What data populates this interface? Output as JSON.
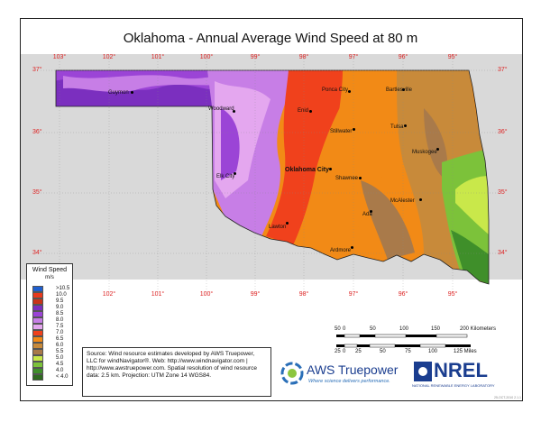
{
  "title": "Oklahoma - Annual Average Wind Speed at 80 m",
  "longitudes": [
    "103°",
    "102°",
    "101°",
    "100°",
    "99°",
    "98°",
    "97°",
    "96°",
    "95°"
  ],
  "latitudes": [
    "37°",
    "36°",
    "35°",
    "34°"
  ],
  "cities": [
    {
      "name": "Guymon",
      "big": false
    },
    {
      "name": "Ponca City",
      "big": false
    },
    {
      "name": "Bartlesville",
      "big": false
    },
    {
      "name": "Enid",
      "big": false
    },
    {
      "name": "Woodward",
      "big": false
    },
    {
      "name": "Stillwater",
      "big": false
    },
    {
      "name": "Tulsa",
      "big": false
    },
    {
      "name": "Muskogee",
      "big": false
    },
    {
      "name": "Oklahoma City",
      "big": true
    },
    {
      "name": "Shawnee",
      "big": false
    },
    {
      "name": "Elk City",
      "big": false
    },
    {
      "name": "McAlester",
      "big": false
    },
    {
      "name": "Ada",
      "big": false
    },
    {
      "name": "Lawton",
      "big": false
    },
    {
      "name": "Ardmore",
      "big": false
    }
  ],
  "legend": {
    "title": "Wind Speed",
    "unit": "m/s",
    "entries": [
      {
        "label": ">10.5",
        "color": "#1f5fcf"
      },
      {
        "label": "10.0",
        "color": "#e83a1e"
      },
      {
        "label": "9.5",
        "color": "#c8341a"
      },
      {
        "label": "9.0",
        "color": "#7b2fbf"
      },
      {
        "label": "8.5",
        "color": "#9b44d6"
      },
      {
        "label": "8.0",
        "color": "#c77ee6"
      },
      {
        "label": "7.5",
        "color": "#e4a7ef"
      },
      {
        "label": "7.0",
        "color": "#f0411c"
      },
      {
        "label": "6.5",
        "color": "#f28a16"
      },
      {
        "label": "6.0",
        "color": "#c88a3a"
      },
      {
        "label": "5.5",
        "color": "#a97a4a"
      },
      {
        "label": "5.0",
        "color": "#c9e84a"
      },
      {
        "label": "4.5",
        "color": "#7cc23a"
      },
      {
        "label": "4.0",
        "color": "#3f8f2a"
      },
      {
        "label": "< 4.0",
        "color": "#2f6a20"
      }
    ]
  },
  "source_text": [
    "Source: Wind resource estimates developed by AWS Truepower,",
    "LLC for windNavigator®. Web: http://www.windnavigator.com |",
    "http://www.awstruepower.com. Spatial resolution of wind resource",
    "data: 2.5 km. Projection: UTM Zone 14 WGS84."
  ],
  "scale": {
    "km_ticks": [
      "50",
      "0",
      "50",
      "100",
      "150",
      "200 Kilometers"
    ],
    "mi_ticks": [
      "25",
      "0",
      "25",
      "50",
      "75",
      "100",
      "125 Miles"
    ]
  },
  "logos": {
    "aws_name": "AWS Truepower",
    "aws_tagline": "Where science delivers performance.",
    "nrel_name": "NREL",
    "nrel_tagline": "NATIONAL RENEWABLE ENERGY LABORATORY"
  },
  "map_id": "25-OCT-2010 2.1.1"
}
